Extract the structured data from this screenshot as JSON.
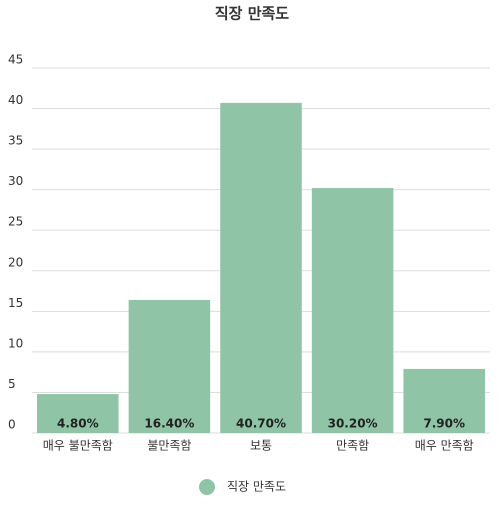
{
  "chart_data": {
    "type": "bar",
    "title": "직장 만족도",
    "categories": [
      "매우 불만족함",
      "불만족함",
      "보통",
      "만족함",
      "매우 만족함"
    ],
    "series": [
      {
        "name": "직장 만족도",
        "color": "#8fc4a6",
        "values": [
          4.8,
          16.4,
          40.7,
          30.2,
          7.9
        ],
        "value_labels": [
          "4.80%",
          "16.40%",
          "40.70%",
          "30.20%",
          "7.90%"
        ]
      }
    ],
    "ylim": [
      0,
      45
    ],
    "yticks": [
      0,
      5,
      10,
      15,
      20,
      25,
      30,
      35,
      40,
      45
    ],
    "grid": true,
    "legend": "bottom"
  }
}
